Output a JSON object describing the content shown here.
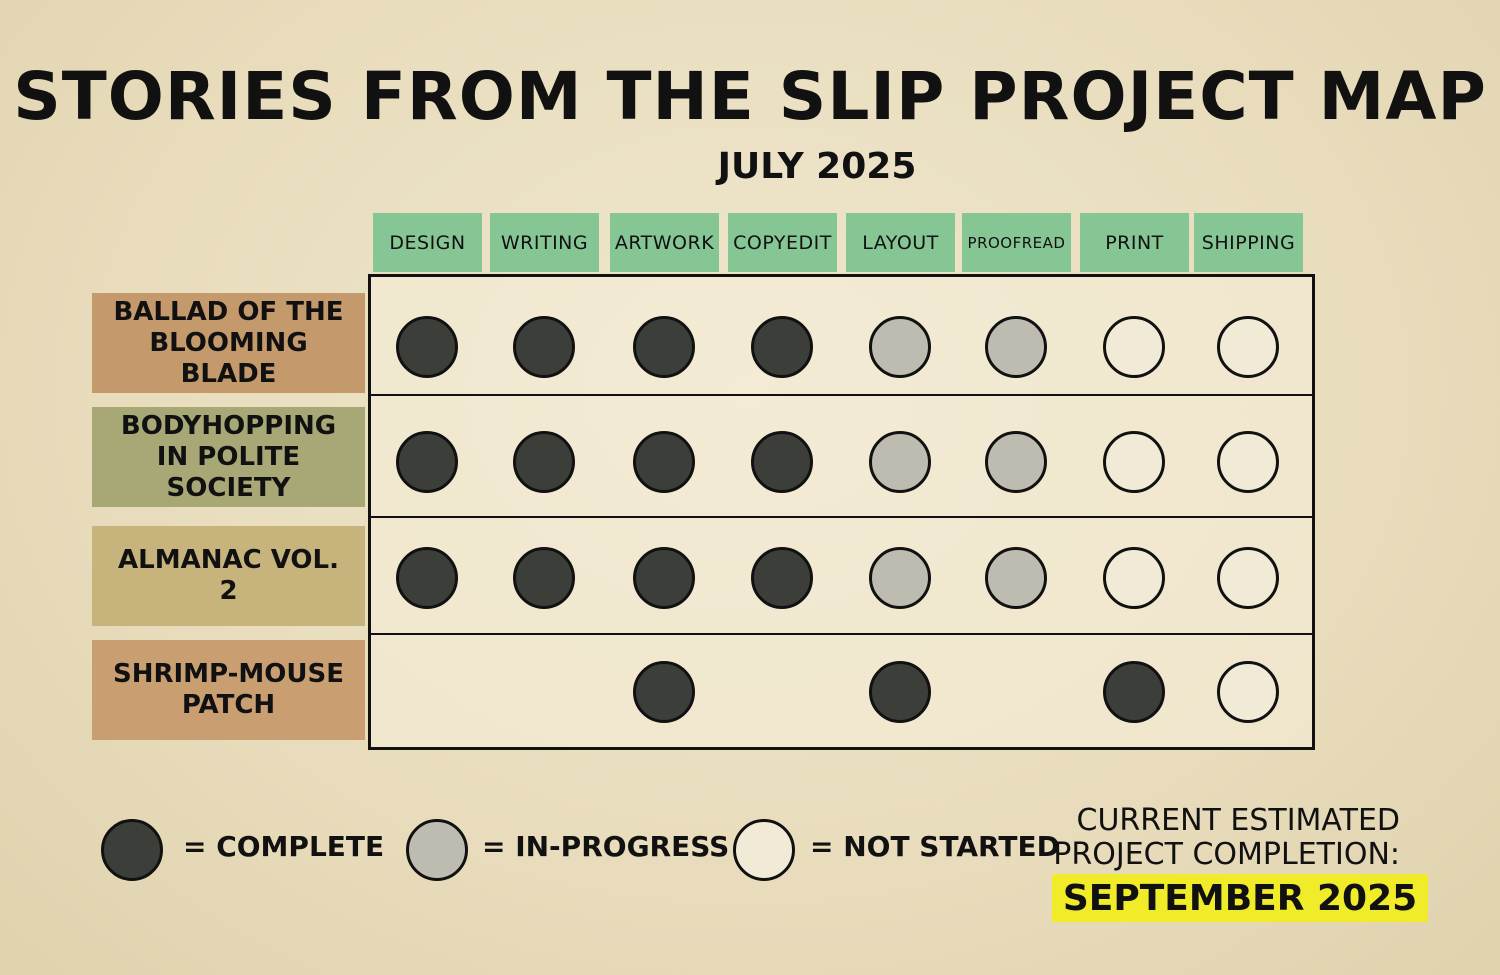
{
  "title": "STORIES FROM THE SLIP PROJECT MAP",
  "subtitle": "JULY 2025",
  "stages": [
    "DESIGN",
    "WRITING",
    "ARTWORK",
    "COPYEDIT",
    "LAYOUT",
    "PROOFREAD",
    "PRINT",
    "SHIPPING"
  ],
  "projects": [
    {
      "name": "BALLAD OF THE BLOOMING BLADE",
      "color": "#c49a6c",
      "status": [
        "complete",
        "complete",
        "complete",
        "complete",
        "in-progress",
        "in-progress",
        "not-started",
        "not-started"
      ]
    },
    {
      "name": "BODYHOPPING IN POLITE SOCIETY",
      "color": "#a8a776",
      "status": [
        "complete",
        "complete",
        "complete",
        "complete",
        "in-progress",
        "in-progress",
        "not-started",
        "not-started"
      ]
    },
    {
      "name": "ALMANAC VOL. 2",
      "color": "#c7b37c",
      "status": [
        "complete",
        "complete",
        "complete",
        "complete",
        "in-progress",
        "in-progress",
        "not-started",
        "not-started"
      ]
    },
    {
      "name": "SHRIMP-MOUSE PATCH",
      "color": "#c99f72",
      "status": [
        null,
        null,
        "complete",
        null,
        "complete",
        null,
        "complete",
        "not-started"
      ]
    }
  ],
  "legend": {
    "complete": "= COMPLETE",
    "in_progress": "= IN-PROGRESS",
    "not_started": "= NOT STARTED"
  },
  "completion": {
    "label_line1": "CURRENT ESTIMATED",
    "label_line2": "PROJECT COMPLETION:",
    "value": "SEPTEMBER 2025",
    "highlight": "#f1ec2a"
  },
  "colors": {
    "tab": "#86c695",
    "complete": "#3c3e3a",
    "in_progress": "#bebcb0",
    "not_started": "#f1ead6"
  }
}
